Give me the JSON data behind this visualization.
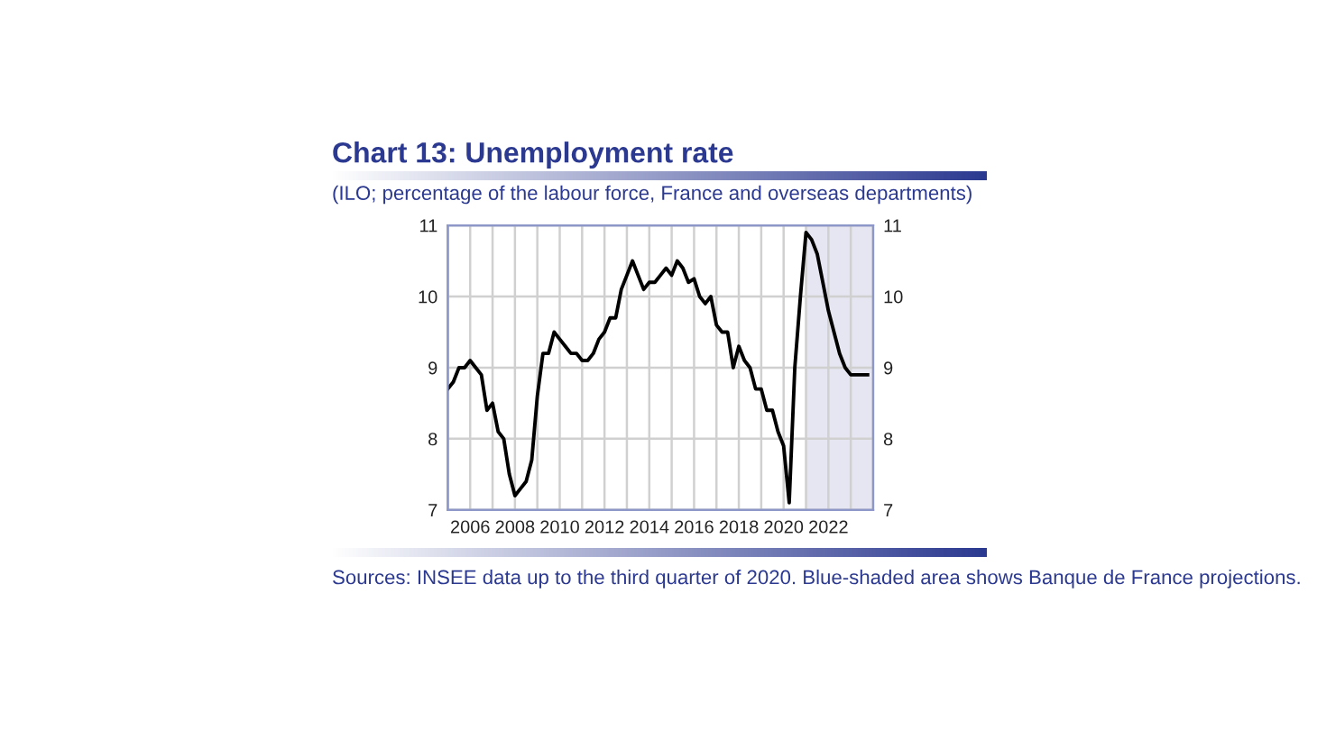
{
  "chart_data": {
    "type": "line",
    "title": "Chart 13: Unemployment rate",
    "subtitle": "(ILO; percentage of the labour force, France and overseas departments)",
    "annotations": [
      "Sources: INSEE data up to the third quarter of 2020. Blue-shaded area shows Banque de France projections."
    ],
    "series": [
      {
        "color": "#000000",
        "x": [
          2005.0,
          2005.25,
          2005.5,
          2005.75,
          2006.0,
          2006.25,
          2006.5,
          2006.75,
          2007.0,
          2007.25,
          2007.5,
          2007.75,
          2008.0,
          2008.25,
          2008.5,
          2008.75,
          2009.0,
          2009.25,
          2009.5,
          2009.75,
          2010.0,
          2010.25,
          2010.5,
          2010.75,
          2011.0,
          2011.25,
          2011.5,
          2011.75,
          2012.0,
          2012.25,
          2012.5,
          2012.75,
          2013.0,
          2013.25,
          2013.5,
          2013.75,
          2014.0,
          2014.25,
          2014.5,
          2014.75,
          2015.0,
          2015.25,
          2015.5,
          2015.75,
          2016.0,
          2016.25,
          2016.5,
          2016.75,
          2017.0,
          2017.25,
          2017.5,
          2017.75,
          2018.0,
          2018.25,
          2018.5,
          2018.75,
          2019.0,
          2019.25,
          2019.5,
          2019.75,
          2020.0,
          2020.25,
          2020.5,
          2020.75,
          2021.0,
          2021.25,
          2021.5,
          2021.75,
          2022.0,
          2022.25,
          2022.5,
          2022.75,
          2023.0,
          2023.25,
          2023.5,
          2023.75
        ],
        "values": [
          8.7,
          8.8,
          9.0,
          9.0,
          9.1,
          9.0,
          8.9,
          8.4,
          8.5,
          8.1,
          8.0,
          7.5,
          7.2,
          7.3,
          7.4,
          7.7,
          8.6,
          9.2,
          9.2,
          9.5,
          9.4,
          9.3,
          9.2,
          9.2,
          9.1,
          9.1,
          9.2,
          9.4,
          9.5,
          9.7,
          9.7,
          10.1,
          10.3,
          10.5,
          10.3,
          10.1,
          10.2,
          10.2,
          10.3,
          10.4,
          10.3,
          10.5,
          10.4,
          10.2,
          10.25,
          10.0,
          9.9,
          10.0,
          9.6,
          9.5,
          9.5,
          9.0,
          9.3,
          9.1,
          9.0,
          8.7,
          8.7,
          8.4,
          8.4,
          8.1,
          7.9,
          7.1,
          9.0,
          10.0,
          10.9,
          10.8,
          10.6,
          10.2,
          9.8,
          9.5,
          9.2,
          9.0,
          8.9,
          8.9,
          8.9,
          8.9
        ]
      }
    ],
    "xlim": [
      2005,
      2024
    ],
    "xticks": [
      {
        "value": 2005,
        "label": null
      },
      2006,
      {
        "value": 2007,
        "label": null
      },
      2008,
      {
        "value": 2009,
        "label": null
      },
      2010,
      {
        "value": 2011,
        "label": null
      },
      2012,
      {
        "value": 2013,
        "label": null
      },
      2014,
      {
        "value": 2015,
        "label": null
      },
      2016,
      {
        "value": 2017,
        "label": null
      },
      2018,
      {
        "value": 2019,
        "label": null
      },
      2020,
      {
        "value": 2021,
        "label": null
      },
      2022,
      {
        "value": 2023,
        "label": null
      },
      {
        "value": 2024,
        "label": null
      }
    ],
    "ylim": [
      7,
      11
    ],
    "yticks": [
      7,
      8,
      9,
      10,
      11
    ],
    "y2lim": [
      7,
      11
    ],
    "y2ticks": [
      7,
      8,
      9,
      10,
      11
    ],
    "bands": [
      {
        "axis": "x",
        "from": 2021,
        "to": 2024,
        "color": "#e6e6f2"
      }
    ],
    "grid": true
  }
}
